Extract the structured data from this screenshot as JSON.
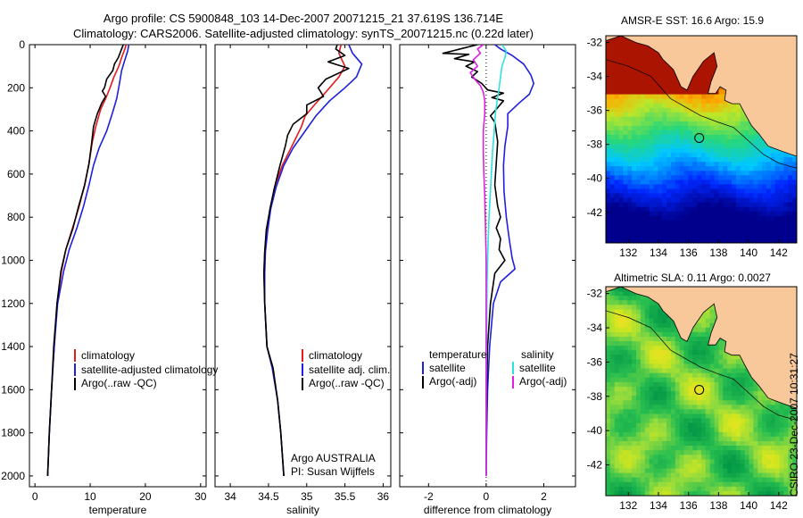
{
  "header": {
    "line1": "Argo profile: CS 5900848_103 14-Dec-2007 20071215_21 37.619S 136.714E",
    "line2": "Climatology: CARS2006. Satellite-adjusted climatology: synTS_20071215.nc (0.22d later)"
  },
  "footer_stamp": "CSIRO 23-Dec-2007 10:31:27",
  "colors": {
    "black": "#000000",
    "red": "#e41a1c",
    "blue": "#1f1fe0",
    "cyan": "#2fe0e0",
    "magenta": "#e020e0",
    "land": "#f9c89a"
  },
  "chart_data": [
    {
      "id": "temperature",
      "type": "line",
      "xlabel": "temperature",
      "xlim": [
        -1,
        31
      ],
      "xticks": [
        0,
        10,
        20,
        30
      ],
      "ylim": [
        2050,
        0
      ],
      "yticks": [
        0,
        200,
        400,
        600,
        800,
        1000,
        1200,
        1400,
        1600,
        1800,
        2000
      ],
      "legend": {
        "entries": [
          "climatology",
          "satellite-adjusted climatology",
          "Argo(..raw -QC)"
        ]
      },
      "series": [
        {
          "name": "climatology",
          "color": "#e41a1c",
          "points": [
            [
              16.5,
              0
            ],
            [
              16.3,
              20
            ],
            [
              15.7,
              60
            ],
            [
              15.2,
              100
            ],
            [
              14.3,
              150
            ],
            [
              13.6,
              200
            ],
            [
              12.8,
              250
            ],
            [
              11.9,
              300
            ],
            [
              11.0,
              380
            ],
            [
              10.4,
              450
            ],
            [
              9.8,
              550
            ],
            [
              9.0,
              650
            ],
            [
              8.0,
              750
            ],
            [
              6.8,
              850
            ],
            [
              5.6,
              950
            ],
            [
              4.8,
              1050
            ],
            [
              4.0,
              1200
            ],
            [
              3.5,
              1400
            ],
            [
              3.0,
              1600
            ],
            [
              2.6,
              1800
            ],
            [
              2.3,
              2000
            ]
          ]
        },
        {
          "name": "satellite-adjusted climatology",
          "color": "#1f1fe0",
          "points": [
            [
              17.0,
              0
            ],
            [
              16.8,
              30
            ],
            [
              16.3,
              70
            ],
            [
              15.7,
              120
            ],
            [
              15.3,
              180
            ],
            [
              14.8,
              250
            ],
            [
              14.0,
              320
            ],
            [
              13.0,
              400
            ],
            [
              11.6,
              480
            ],
            [
              10.6,
              560
            ],
            [
              9.8,
              650
            ],
            [
              8.8,
              750
            ],
            [
              7.6,
              850
            ],
            [
              6.2,
              950
            ],
            [
              5.2,
              1050
            ],
            [
              4.1,
              1200
            ],
            [
              3.5,
              1400
            ],
            [
              3.0,
              1600
            ],
            [
              2.6,
              1800
            ],
            [
              2.3,
              2000
            ]
          ]
        },
        {
          "name": "Argo(..raw -QC)",
          "color": "#000000",
          "points": [
            [
              16.0,
              0
            ],
            [
              15.7,
              20
            ],
            [
              15.1,
              60
            ],
            [
              14.4,
              90
            ],
            [
              14.1,
              120
            ],
            [
              13.0,
              160
            ],
            [
              12.6,
              200
            ],
            [
              12.2,
              215
            ],
            [
              12.8,
              240
            ],
            [
              12.1,
              270
            ],
            [
              11.3,
              320
            ],
            [
              10.6,
              380
            ],
            [
              10.3,
              450
            ],
            [
              9.8,
              550
            ],
            [
              9.0,
              650
            ],
            [
              7.9,
              750
            ],
            [
              6.9,
              850
            ],
            [
              5.6,
              950
            ],
            [
              4.7,
              1050
            ],
            [
              4.0,
              1200
            ],
            [
              3.4,
              1400
            ],
            [
              3.0,
              1600
            ],
            [
              2.6,
              1800
            ],
            [
              2.3,
              2000
            ]
          ]
        }
      ]
    },
    {
      "id": "salinity",
      "type": "line",
      "xlabel": "salinity",
      "xlim": [
        33.8,
        36.1
      ],
      "xticks": [
        34,
        34.5,
        35,
        35.5,
        36
      ],
      "ylim": [
        2050,
        0
      ],
      "legend": {
        "entries": [
          "climatology",
          "satellite adj. clim.",
          "Argo(..raw -QC)"
        ]
      },
      "annotation": [
        "Argo AUSTRALIA",
        "PI: Susan Wijffels"
      ],
      "series": [
        {
          "name": "climatology",
          "color": "#e41a1c",
          "points": [
            [
              35.45,
              0
            ],
            [
              35.42,
              40
            ],
            [
              35.5,
              100
            ],
            [
              35.42,
              150
            ],
            [
              35.25,
              220
            ],
            [
              35.1,
              280
            ],
            [
              34.98,
              330
            ],
            [
              34.93,
              380
            ],
            [
              34.82,
              460
            ],
            [
              34.68,
              560
            ],
            [
              34.58,
              660
            ],
            [
              34.52,
              760
            ],
            [
              34.48,
              860
            ],
            [
              34.45,
              960
            ],
            [
              34.44,
              1060
            ],
            [
              34.45,
              1200
            ],
            [
              34.48,
              1400
            ],
            [
              34.55,
              1500
            ],
            [
              34.62,
              1650
            ],
            [
              34.66,
              1800
            ],
            [
              34.7,
              2000
            ]
          ]
        },
        {
          "name": "satellite adj. clim.",
          "color": "#1f1fe0",
          "points": [
            [
              35.55,
              0
            ],
            [
              35.6,
              40
            ],
            [
              35.72,
              90
            ],
            [
              35.65,
              150
            ],
            [
              35.5,
              200
            ],
            [
              35.3,
              260
            ],
            [
              35.12,
              330
            ],
            [
              34.98,
              400
            ],
            [
              34.82,
              480
            ],
            [
              34.7,
              560
            ],
            [
              34.6,
              660
            ],
            [
              34.53,
              760
            ],
            [
              34.49,
              860
            ],
            [
              34.46,
              960
            ],
            [
              34.45,
              1060
            ],
            [
              34.45,
              1200
            ],
            [
              34.48,
              1400
            ],
            [
              34.55,
              1500
            ],
            [
              34.62,
              1650
            ],
            [
              34.66,
              1800
            ],
            [
              34.7,
              2000
            ]
          ]
        },
        {
          "name": "Argo(..raw -QC)",
          "color": "#000000",
          "points": [
            [
              35.4,
              0
            ],
            [
              35.38,
              20
            ],
            [
              35.5,
              50
            ],
            [
              35.28,
              80
            ],
            [
              35.55,
              110
            ],
            [
              35.25,
              160
            ],
            [
              35.15,
              200
            ],
            [
              35.22,
              240
            ],
            [
              35.0,
              280
            ],
            [
              35.0,
              320
            ],
            [
              34.82,
              370
            ],
            [
              34.75,
              420
            ],
            [
              34.72,
              470
            ],
            [
              34.65,
              560
            ],
            [
              34.58,
              660
            ],
            [
              34.52,
              760
            ],
            [
              34.47,
              860
            ],
            [
              34.45,
              960
            ],
            [
              34.44,
              1060
            ],
            [
              34.45,
              1200
            ],
            [
              34.48,
              1400
            ],
            [
              34.56,
              1500
            ],
            [
              34.62,
              1650
            ],
            [
              34.66,
              1800
            ],
            [
              34.7,
              2000
            ]
          ]
        }
      ]
    },
    {
      "id": "difference",
      "type": "line",
      "xlabel": "difference from climatology",
      "xlim": [
        -3,
        3.1
      ],
      "xticks": [
        -2,
        0,
        2
      ],
      "ylim": [
        2050,
        0
      ],
      "zero_line": true,
      "legend": {
        "left_title": "temperature",
        "left_entries": [
          "satellite",
          "Argo(-adj)"
        ],
        "right_title": "salinity",
        "right_entries": [
          "satellite",
          "Argo(-adj)"
        ]
      },
      "series": [
        {
          "name": "temperature satellite",
          "color": "#1f1fe0",
          "points": [
            [
              0.3,
              0
            ],
            [
              0.5,
              20
            ],
            [
              0.9,
              50
            ],
            [
              1.3,
              90
            ],
            [
              1.55,
              140
            ],
            [
              1.65,
              180
            ],
            [
              1.5,
              230
            ],
            [
              1.15,
              270
            ],
            [
              0.75,
              320
            ],
            [
              0.75,
              380
            ],
            [
              0.65,
              470
            ],
            [
              0.6,
              560
            ],
            [
              0.62,
              680
            ],
            [
              0.7,
              800
            ],
            [
              0.8,
              900
            ],
            [
              0.9,
              990
            ],
            [
              1.0,
              1040
            ],
            [
              0.5,
              1100
            ],
            [
              0.25,
              1200
            ],
            [
              0.12,
              1400
            ],
            [
              0.05,
              1600
            ],
            [
              0.02,
              1800
            ],
            [
              0.0,
              2000
            ]
          ]
        },
        {
          "name": "temperature Argo(-adj)",
          "color": "#000000",
          "points": [
            [
              -0.3,
              0
            ],
            [
              -0.9,
              20
            ],
            [
              -1.5,
              40
            ],
            [
              -0.6,
              45
            ],
            [
              -1.1,
              65
            ],
            [
              -0.4,
              80
            ],
            [
              -0.7,
              100
            ],
            [
              -0.3,
              125
            ],
            [
              -0.5,
              150
            ],
            [
              -0.15,
              180
            ],
            [
              0.05,
              210
            ],
            [
              0.6,
              225
            ],
            [
              0.2,
              245
            ],
            [
              0.6,
              260
            ],
            [
              0.35,
              300
            ],
            [
              0.15,
              330
            ],
            [
              0.3,
              360
            ],
            [
              0.4,
              450
            ],
            [
              0.35,
              550
            ],
            [
              0.3,
              650
            ],
            [
              0.4,
              750
            ],
            [
              0.5,
              800
            ],
            [
              0.35,
              850
            ],
            [
              0.5,
              900
            ],
            [
              0.45,
              950
            ],
            [
              0.65,
              1000
            ],
            [
              0.3,
              1060
            ],
            [
              0.15,
              1200
            ],
            [
              0.05,
              1400
            ],
            [
              0.02,
              1600
            ],
            [
              0.0,
              1800
            ],
            [
              0.0,
              2000
            ]
          ]
        },
        {
          "name": "salinity satellite",
          "color": "#2fe0e0",
          "points": [
            [
              0.55,
              0
            ],
            [
              0.7,
              30
            ],
            [
              0.65,
              60
            ],
            [
              0.55,
              100
            ],
            [
              0.5,
              150
            ],
            [
              0.45,
              200
            ],
            [
              0.38,
              260
            ],
            [
              0.32,
              320
            ],
            [
              0.28,
              400
            ],
            [
              0.22,
              500
            ],
            [
              0.18,
              600
            ],
            [
              0.14,
              700
            ],
            [
              0.1,
              800
            ],
            [
              0.06,
              950
            ],
            [
              0.03,
              1100
            ],
            [
              0.02,
              1300
            ],
            [
              0.0,
              1600
            ],
            [
              0.0,
              2000
            ]
          ]
        },
        {
          "name": "salinity Argo(-adj)",
          "color": "#e020e0",
          "points": [
            [
              -0.1,
              0
            ],
            [
              -0.3,
              20
            ],
            [
              -0.2,
              40
            ],
            [
              -0.45,
              70
            ],
            [
              -0.3,
              100
            ],
            [
              -0.55,
              130
            ],
            [
              -0.4,
              160
            ],
            [
              -0.2,
              190
            ],
            [
              -0.1,
              220
            ],
            [
              -0.05,
              260
            ],
            [
              -0.05,
              320
            ],
            [
              -0.1,
              400
            ],
            [
              -0.1,
              500
            ],
            [
              -0.08,
              600
            ],
            [
              -0.05,
              700
            ],
            [
              -0.03,
              800
            ],
            [
              0.0,
              1000
            ],
            [
              0.0,
              2000
            ]
          ]
        }
      ]
    },
    {
      "id": "sst_map",
      "type": "heatmap",
      "title": "AMSR-E SST: 16.6 Argo: 15.9",
      "variable": "SST",
      "xlim": [
        130.5,
        143.2
      ],
      "xticks": [
        132,
        134,
        136,
        138,
        140,
        142
      ],
      "ylim": [
        -43.8,
        -31.6
      ],
      "yticks": [
        -32,
        -34,
        -36,
        -38,
        -40,
        -42
      ],
      "float_position": [
        136.714,
        -37.619
      ]
    },
    {
      "id": "sla_map",
      "type": "heatmap",
      "title": "Altimetric SLA: 0.11 Argo: 0.0027",
      "variable": "SLA",
      "xlim": [
        130.5,
        143.2
      ],
      "xticks": [
        132,
        134,
        136,
        138,
        140,
        142
      ],
      "ylim": [
        -43.8,
        -31.6
      ],
      "yticks": [
        -32,
        -34,
        -36,
        -38,
        -40,
        -42
      ],
      "float_position": [
        136.714,
        -37.619
      ]
    }
  ]
}
